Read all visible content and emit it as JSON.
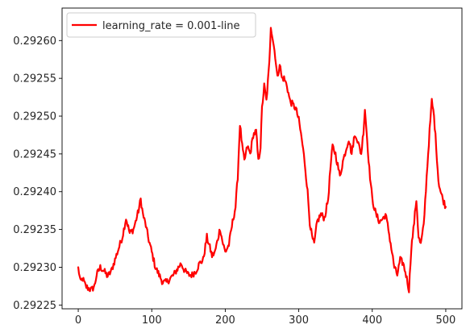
{
  "chart_data": {
    "type": "line",
    "title": "",
    "xlabel": "",
    "ylabel": "",
    "xlim": [
      -22,
      522
    ],
    "ylim": [
      0.292245,
      0.292643
    ],
    "xticks": [
      0,
      100,
      200,
      300,
      400,
      500
    ],
    "xtick_labels": [
      "0",
      "100",
      "200",
      "300",
      "400",
      "500"
    ],
    "yticks": [
      0.29225,
      0.2923,
      0.29235,
      0.2924,
      0.29245,
      0.2925,
      0.29255,
      0.2926
    ],
    "ytick_labels": [
      "0.29225",
      "0.29230",
      "0.29235",
      "0.29240",
      "0.29245",
      "0.29250",
      "0.29255",
      "0.29260"
    ],
    "grid": false,
    "legend": {
      "position": "top-left"
    },
    "series": [
      {
        "name": "learning_rate = 0.001-line",
        "color": "#ff0000",
        "keypoints": [
          [
            0,
            0.2923
          ],
          [
            3,
            0.29228
          ],
          [
            6,
            0.292285
          ],
          [
            10,
            0.292275
          ],
          [
            14,
            0.292272
          ],
          [
            18,
            0.29227
          ],
          [
            22,
            0.292275
          ],
          [
            25,
            0.29229
          ],
          [
            30,
            0.2923
          ],
          [
            35,
            0.292295
          ],
          [
            40,
            0.292288
          ],
          [
            45,
            0.292295
          ],
          [
            50,
            0.29231
          ],
          [
            55,
            0.292325
          ],
          [
            60,
            0.29234
          ],
          [
            65,
            0.292365
          ],
          [
            70,
            0.292345
          ],
          [
            75,
            0.29235
          ],
          [
            78,
            0.29236
          ],
          [
            82,
            0.292375
          ],
          [
            85,
            0.29239
          ],
          [
            88,
            0.29237
          ],
          [
            92,
            0.292355
          ],
          [
            95,
            0.29234
          ],
          [
            100,
            0.29232
          ],
          [
            105,
            0.2923
          ],
          [
            110,
            0.29229
          ],
          [
            115,
            0.29228
          ],
          [
            120,
            0.29228
          ],
          [
            125,
            0.292285
          ],
          [
            130,
            0.29229
          ],
          [
            135,
            0.292298
          ],
          [
            140,
            0.292305
          ],
          [
            145,
            0.292295
          ],
          [
            150,
            0.29229
          ],
          [
            155,
            0.29229
          ],
          [
            160,
            0.292295
          ],
          [
            165,
            0.292305
          ],
          [
            170,
            0.29231
          ],
          [
            175,
            0.29234
          ],
          [
            178,
            0.29233
          ],
          [
            182,
            0.292315
          ],
          [
            186,
            0.29232
          ],
          [
            190,
            0.292338
          ],
          [
            193,
            0.292352
          ],
          [
            196,
            0.292335
          ],
          [
            200,
            0.29232
          ],
          [
            205,
            0.29233
          ],
          [
            210,
            0.29236
          ],
          [
            214,
            0.29238
          ],
          [
            217,
            0.29242
          ],
          [
            220,
            0.29249
          ],
          [
            223,
            0.29246
          ],
          [
            226,
            0.29244
          ],
          [
            230,
            0.29246
          ],
          [
            234,
            0.29245
          ],
          [
            238,
            0.292475
          ],
          [
            242,
            0.29248
          ],
          [
            245,
            0.29244
          ],
          [
            248,
            0.29246
          ],
          [
            250,
            0.29251
          ],
          [
            253,
            0.29254
          ],
          [
            256,
            0.29252
          ],
          [
            260,
            0.29257
          ],
          [
            262,
            0.29262
          ],
          [
            265,
            0.2926
          ],
          [
            268,
            0.29258
          ],
          [
            271,
            0.29255
          ],
          [
            274,
            0.29257
          ],
          [
            277,
            0.29255
          ],
          [
            280,
            0.29255
          ],
          [
            284,
            0.29254
          ],
          [
            288,
            0.29252
          ],
          [
            292,
            0.292515
          ],
          [
            296,
            0.29251
          ],
          [
            300,
            0.292495
          ],
          [
            304,
            0.29247
          ],
          [
            308,
            0.29244
          ],
          [
            312,
            0.2924
          ],
          [
            315,
            0.29236
          ],
          [
            318,
            0.29234
          ],
          [
            321,
            0.29233
          ],
          [
            325,
            0.29236
          ],
          [
            330,
            0.29237
          ],
          [
            335,
            0.292365
          ],
          [
            340,
            0.29239
          ],
          [
            343,
            0.29243
          ],
          [
            346,
            0.29246
          ],
          [
            350,
            0.29245
          ],
          [
            353,
            0.292435
          ],
          [
            356,
            0.29242
          ],
          [
            360,
            0.29244
          ],
          [
            364,
            0.292455
          ],
          [
            368,
            0.29247
          ],
          [
            372,
            0.29245
          ],
          [
            375,
            0.29247
          ],
          [
            378,
            0.292475
          ],
          [
            382,
            0.29246
          ],
          [
            385,
            0.29245
          ],
          [
            388,
            0.29248
          ],
          [
            390,
            0.29251
          ],
          [
            393,
            0.29247
          ],
          [
            396,
            0.29243
          ],
          [
            400,
            0.29239
          ],
          [
            405,
            0.29237
          ],
          [
            410,
            0.29236
          ],
          [
            415,
            0.292365
          ],
          [
            418,
            0.29237
          ],
          [
            422,
            0.29235
          ],
          [
            426,
            0.292325
          ],
          [
            430,
            0.2923
          ],
          [
            434,
            0.29229
          ],
          [
            438,
            0.29231
          ],
          [
            442,
            0.292305
          ],
          [
            446,
            0.29229
          ],
          [
            450,
            0.29227
          ],
          [
            453,
            0.292325
          ],
          [
            456,
            0.29235
          ],
          [
            460,
            0.29239
          ],
          [
            463,
            0.29234
          ],
          [
            466,
            0.29233
          ],
          [
            470,
            0.292355
          ],
          [
            474,
            0.29242
          ],
          [
            478,
            0.29248
          ],
          [
            481,
            0.29252
          ],
          [
            484,
            0.2925
          ],
          [
            487,
            0.29246
          ],
          [
            490,
            0.292415
          ],
          [
            493,
            0.2924
          ],
          [
            496,
            0.29239
          ],
          [
            500,
            0.29238
          ]
        ]
      }
    ]
  }
}
